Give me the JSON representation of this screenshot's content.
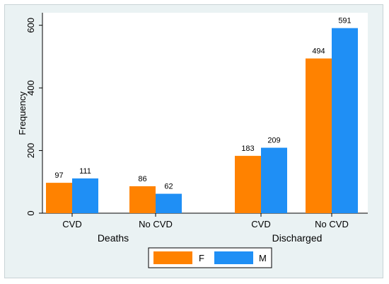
{
  "chart_data": {
    "type": "bar",
    "ylabel": "Frequency",
    "ylim": [
      0,
      640
    ],
    "yticks": [
      0,
      200,
      400,
      600
    ],
    "groups": [
      {
        "label": "Deaths",
        "categories": [
          {
            "label": "CVD",
            "values": [
              97,
              111
            ]
          },
          {
            "label": "No CVD",
            "values": [
              86,
              62
            ]
          }
        ]
      },
      {
        "label": "Discharged",
        "categories": [
          {
            "label": "CVD",
            "values": [
              183,
              209
            ]
          },
          {
            "label": "No CVD",
            "values": [
              494,
              591
            ]
          }
        ]
      }
    ],
    "series": [
      {
        "name": "F",
        "color": "#ff8200"
      },
      {
        "name": "M",
        "color": "#1f8ff5"
      }
    ],
    "legend_position": "bottom",
    "grid": false
  }
}
